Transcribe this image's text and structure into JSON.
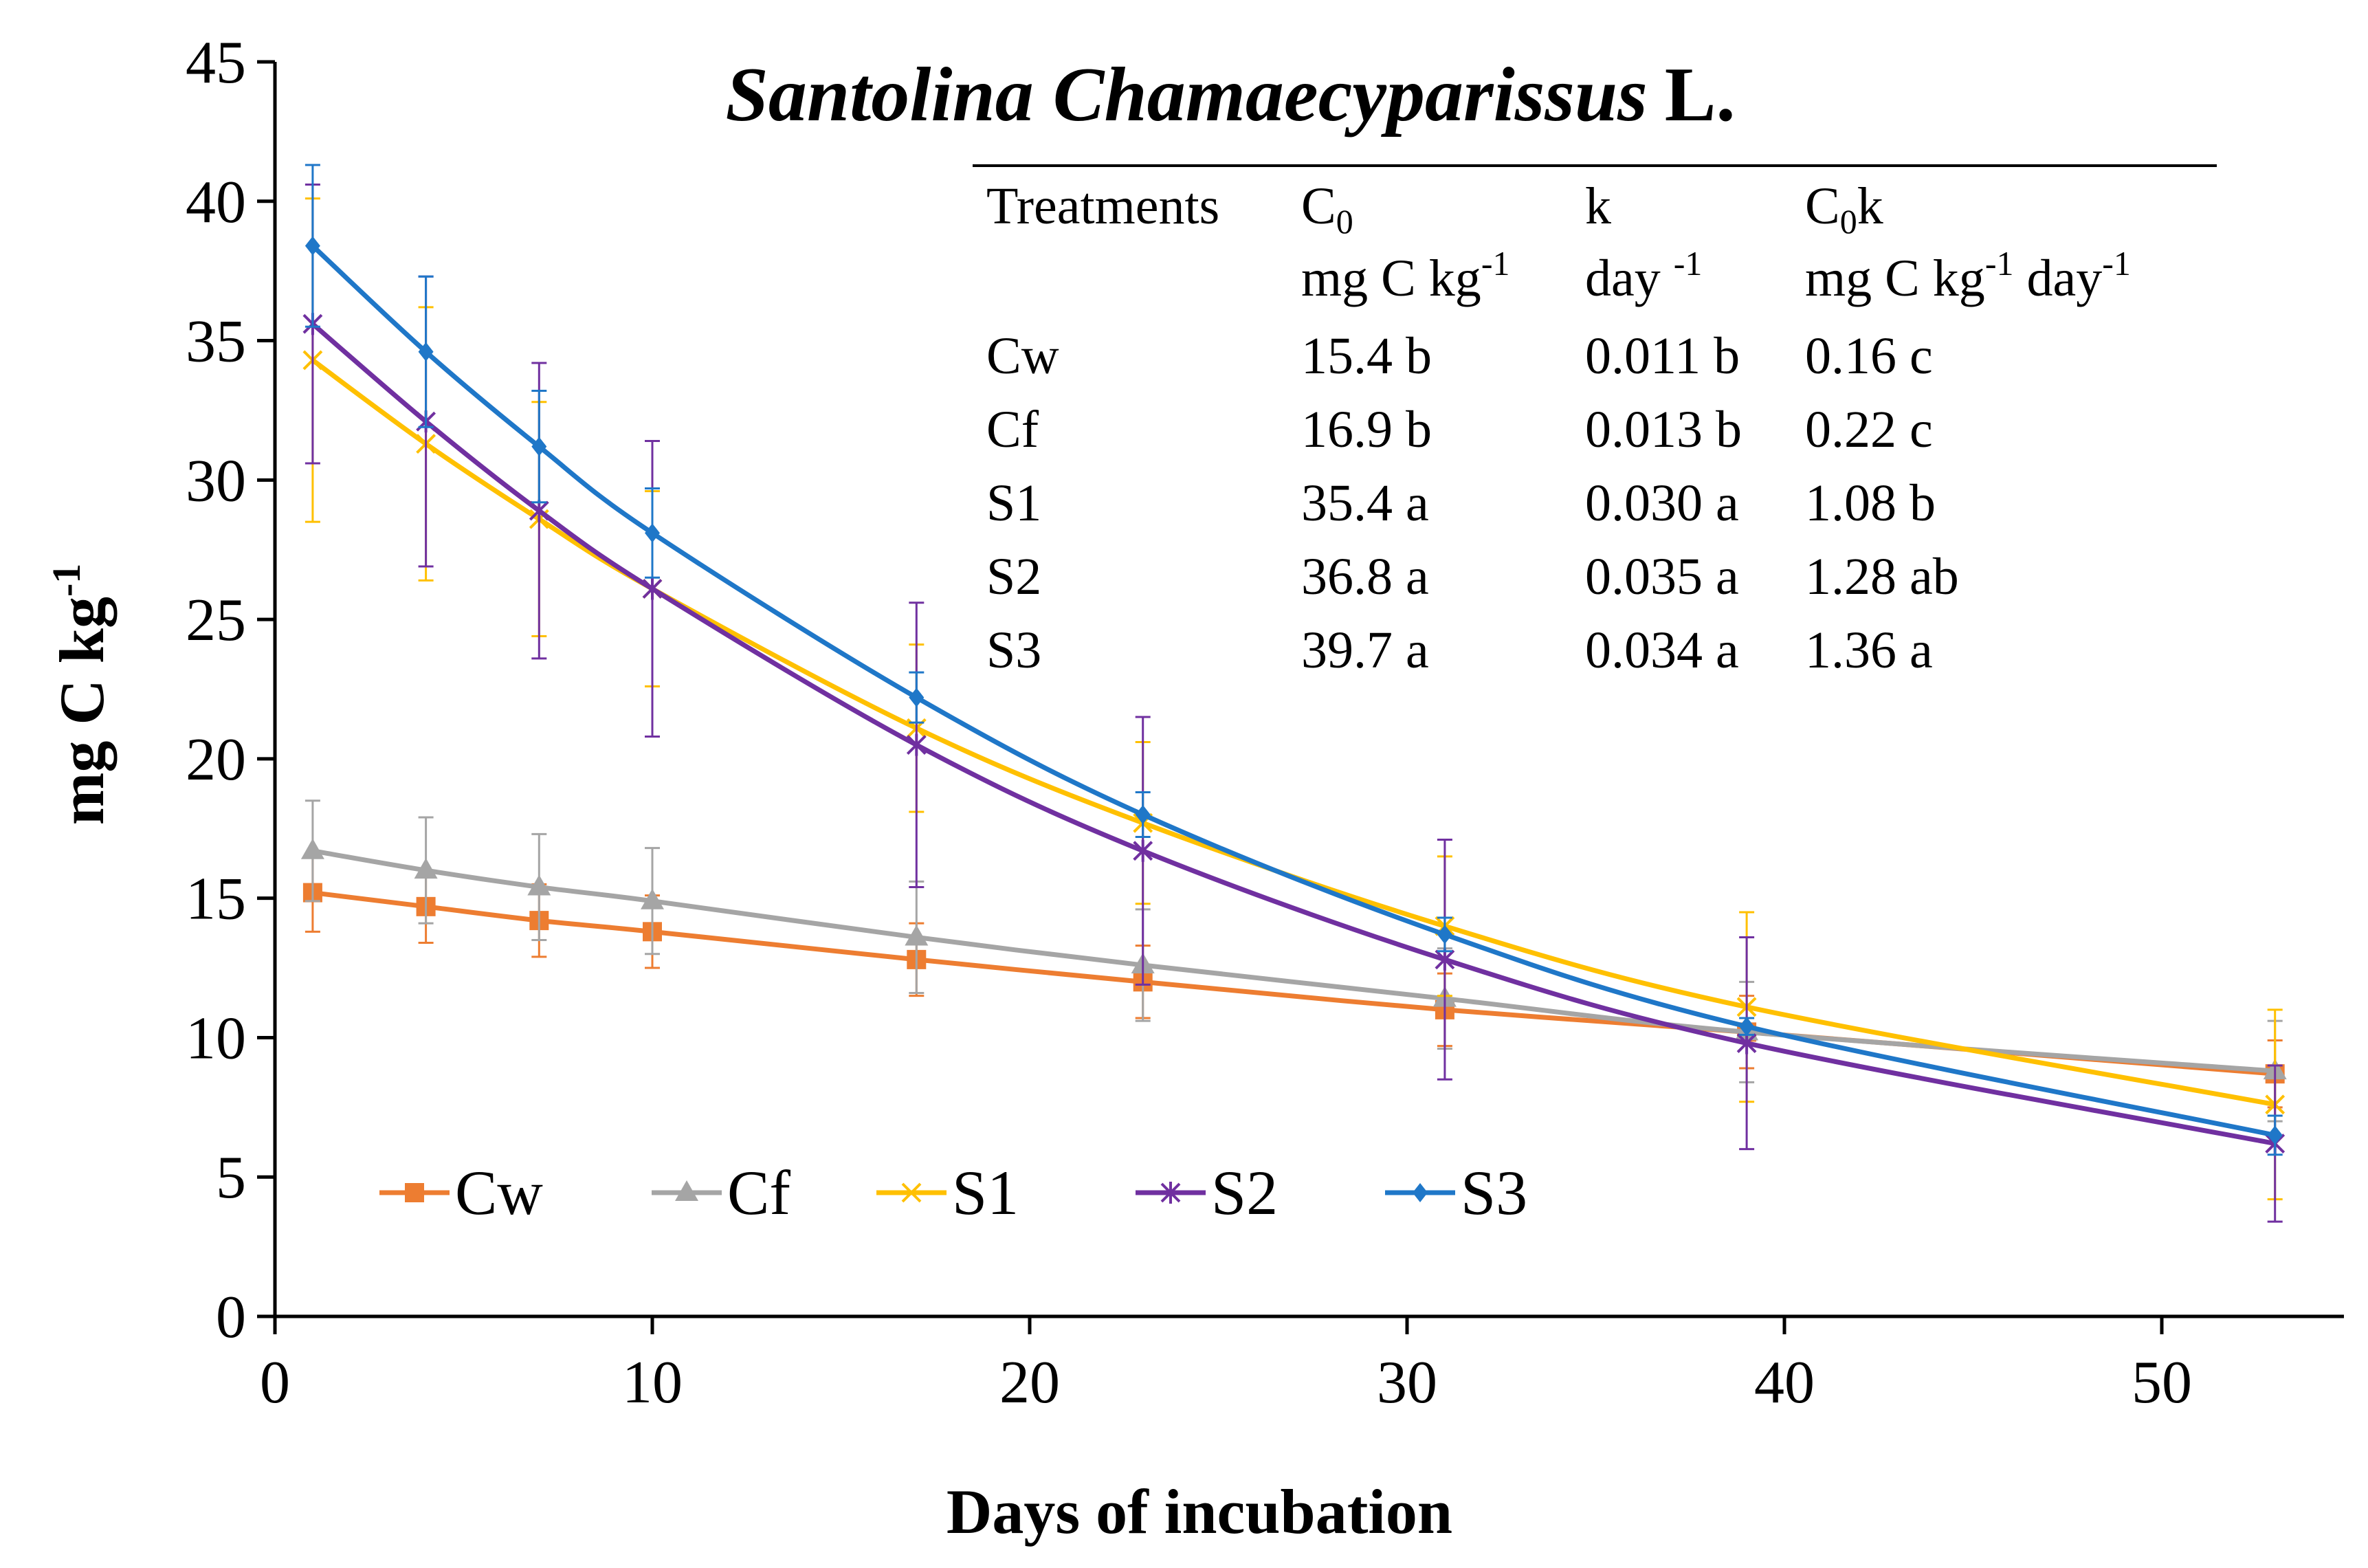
{
  "chart_data": {
    "type": "line",
    "title": {
      "italic": "Santolina Chamaecyparissus",
      "plain": "L."
    },
    "xlabel": "Days of incubation",
    "ylabel": "mg C kg",
    "ylabel_sup": "-1",
    "xlim": [
      0,
      55
    ],
    "ylim": [
      0,
      45
    ],
    "xticks": [
      0,
      10,
      20,
      30,
      40,
      50
    ],
    "yticks": [
      0,
      5,
      10,
      15,
      20,
      25,
      30,
      35,
      40,
      45
    ],
    "grid": false,
    "legend_position": "bottom-left",
    "x": [
      1,
      4,
      7,
      10,
      17,
      23,
      31,
      39,
      53
    ],
    "series": [
      {
        "name": "Cw",
        "color": "#ED7D31",
        "marker": "square",
        "values": [
          15.2,
          14.7,
          14.2,
          13.8,
          12.8,
          12.0,
          11.0,
          10.2,
          8.7
        ],
        "errors": [
          1.4,
          1.3,
          1.3,
          1.3,
          1.3,
          1.3,
          1.3,
          1.3,
          1.2
        ]
      },
      {
        "name": "Cf",
        "color": "#A5A5A5",
        "marker": "triangle",
        "values": [
          16.7,
          16.0,
          15.4,
          14.9,
          13.6,
          12.6,
          11.4,
          10.2,
          8.8
        ],
        "errors": [
          1.8,
          1.9,
          1.9,
          1.9,
          2.0,
          2.0,
          1.8,
          1.8,
          1.8
        ]
      },
      {
        "name": "S1",
        "color": "#FFC000",
        "marker": "x",
        "values": [
          34.3,
          31.3,
          28.6,
          26.1,
          21.1,
          17.7,
          14.0,
          11.1,
          7.6
        ],
        "errors": [
          5.8,
          4.9,
          4.2,
          3.5,
          3.0,
          2.9,
          2.5,
          3.4,
          3.4
        ]
      },
      {
        "name": "S2",
        "color": "#7030A0",
        "marker": "star",
        "values": [
          35.6,
          32.1,
          28.9,
          26.1,
          20.5,
          16.7,
          12.8,
          9.8,
          6.2
        ],
        "errors": [
          5.0,
          5.2,
          5.3,
          5.3,
          5.1,
          4.8,
          4.3,
          3.8,
          2.8
        ]
      },
      {
        "name": "S3",
        "color": "#1F77C8",
        "marker": "diamond",
        "values": [
          38.4,
          34.6,
          31.2,
          28.1,
          22.2,
          18.0,
          13.7,
          10.4,
          6.5
        ],
        "errors": [
          2.9,
          2.7,
          2.0,
          1.6,
          0.9,
          0.8,
          0.6,
          0.3,
          0.7
        ]
      }
    ],
    "table": {
      "headers": [
        "Treatments",
        "C0",
        "k",
        "C0k"
      ],
      "units": [
        "",
        "mg C kg-1",
        "day -1",
        "mg C kg-1 day-1"
      ],
      "rows": [
        [
          "Cw",
          "15.4 b",
          "0.011 b",
          "0.16 c"
        ],
        [
          "Cf",
          "16.9 b",
          "0.013 b",
          "0.22 c"
        ],
        [
          "S1",
          "35.4 a",
          "0.030 a",
          "1.08 b"
        ],
        [
          "S2",
          "36.8 a",
          "0.035 a",
          "1.28 ab"
        ],
        [
          "S3",
          "39.7 a",
          "0.034 a",
          "1.36 a"
        ]
      ]
    }
  },
  "table_text": {
    "h_treat": "Treatments",
    "h_c0_base": "C",
    "h_c0_sub": "0",
    "h_k": "k",
    "h_c0k_base": "C",
    "h_c0k_sub": "0",
    "h_c0k_tail": "k",
    "u_c0_main": "mg C kg",
    "u_c0_sup": "-1",
    "u_k_main": "day ",
    "u_k_sup": "-1",
    "u_c0k_main1": "mg C kg",
    "u_c0k_sup1": "-1",
    "u_c0k_main2": " day",
    "u_c0k_sup2": "-1"
  }
}
